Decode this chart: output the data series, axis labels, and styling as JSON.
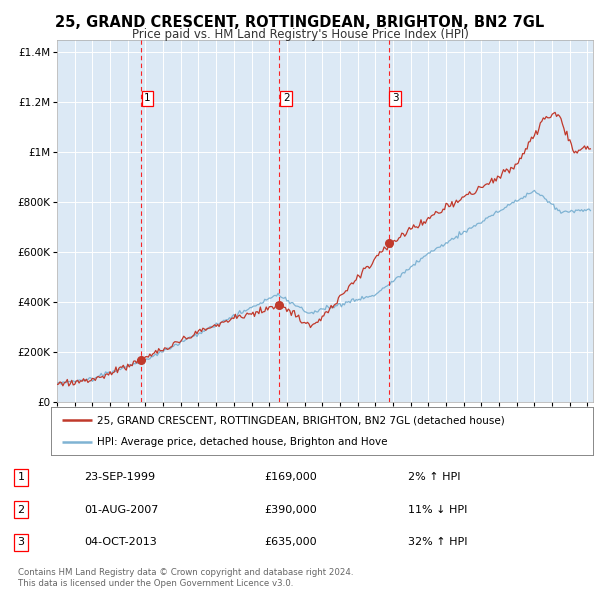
{
  "title": "25, GRAND CRESCENT, ROTTINGDEAN, BRIGHTON, BN2 7GL",
  "subtitle": "Price paid vs. HM Land Registry's House Price Index (HPI)",
  "bg_color": "#ffffff",
  "plot_bg_color": "#dce9f5",
  "grid_color": "#ffffff",
  "red_line_color": "#c0392b",
  "blue_line_color": "#7fb3d3",
  "transactions": [
    {
      "date_year": 1999.73,
      "price": 169000,
      "label": "1",
      "date_str": "23-SEP-1999",
      "pct": "2%",
      "dir": "↑"
    },
    {
      "date_year": 2007.58,
      "price": 390000,
      "label": "2",
      "date_str": "01-AUG-2007",
      "pct": "11%",
      "dir": "↓"
    },
    {
      "date_year": 2013.75,
      "price": 635000,
      "label": "3",
      "date_str": "04-OCT-2013",
      "pct": "32%",
      "dir": "↑"
    }
  ],
  "legend_line1": "25, GRAND CRESCENT, ROTTINGDEAN, BRIGHTON, BN2 7GL (detached house)",
  "legend_line2": "HPI: Average price, detached house, Brighton and Hove",
  "footer1": "Contains HM Land Registry data © Crown copyright and database right 2024.",
  "footer2": "This data is licensed under the Open Government Licence v3.0.",
  "ylim": [
    0,
    1450000
  ],
  "xlim_start": 1995.0,
  "xlim_end": 2025.3,
  "ytick_vals": [
    0,
    200000,
    400000,
    600000,
    800000,
    1000000,
    1200000,
    1400000
  ],
  "ytick_labels": [
    "£0",
    "£200K",
    "£400K",
    "£600K",
    "£800K",
    "£1M",
    "£1.2M",
    "£1.4M"
  ]
}
